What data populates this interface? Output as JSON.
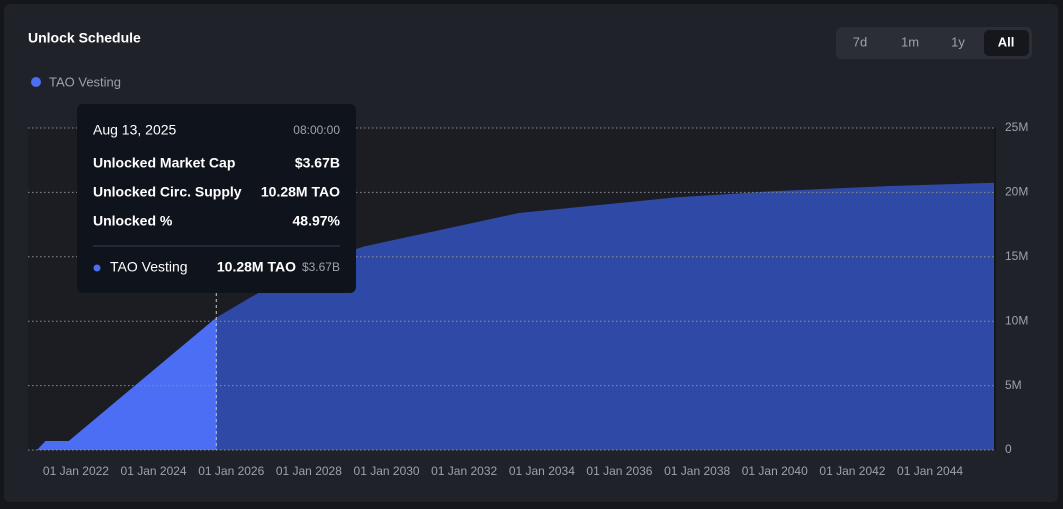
{
  "chart_data": {
    "type": "area",
    "title": "Unlock Schedule",
    "x": [
      "2020-12-31",
      "2021-03-20",
      "2021-10-25",
      "2025-08-13",
      "2026-06-01",
      "2027-06-01",
      "2028-06-01",
      "2029-06-01",
      "2031-06-01",
      "2033-06-01",
      "2035-06-01",
      "2037-06-01",
      "2040-01-01",
      "2043-01-01",
      "2045-09-03"
    ],
    "series": [
      {
        "name": "TAO Vesting",
        "color": "#2f4aa6",
        "highlight_color": "#4b6ef5",
        "values": [
          0,
          700000,
          700000,
          10280000,
          11700000,
          13400000,
          14800000,
          15800000,
          17100000,
          18400000,
          19000000,
          19600000,
          20100000,
          20500000,
          20750000
        ]
      }
    ],
    "xlim": [
      "2020-12-21",
      "2045-09-03"
    ],
    "xticks": [
      {
        "value": "2022-01-01",
        "label": "01 Jan 2022"
      },
      {
        "value": "2024-01-01",
        "label": "01 Jan 2024"
      },
      {
        "value": "2026-01-01",
        "label": "01 Jan 2026"
      },
      {
        "value": "2028-01-01",
        "label": "01 Jan 2028"
      },
      {
        "value": "2030-01-01",
        "label": "01 Jan 2030"
      },
      {
        "value": "2032-01-01",
        "label": "01 Jan 2032"
      },
      {
        "value": "2034-01-01",
        "label": "01 Jan 2034"
      },
      {
        "value": "2036-01-01",
        "label": "01 Jan 2036"
      },
      {
        "value": "2038-01-01",
        "label": "01 Jan 2038"
      },
      {
        "value": "2040-01-01",
        "label": "01 Jan 2040"
      },
      {
        "value": "2042-01-01",
        "label": "01 Jan 2042"
      },
      {
        "value": "2044-01-01",
        "label": "01 Jan 2044"
      }
    ],
    "ylim": [
      0,
      25000000
    ],
    "yticks": [
      0,
      {
        "value": 5000000,
        "label": "5M"
      },
      {
        "value": 10000000,
        "label": "10M"
      },
      {
        "value": 15000000,
        "label": "15M"
      },
      {
        "value": 20000000,
        "label": "20M"
      },
      {
        "value": 25000000,
        "label": "25M"
      }
    ],
    "grid": true
  },
  "controls": [
    "7d",
    "1m",
    "1y",
    "All"
  ],
  "active_control": 3,
  "tooltip": {
    "date": {
      "value": "2025-08-13",
      "label": "Aug 13, 2025"
    },
    "time": "08:00:00",
    "rows": [
      [
        "Unlocked Market Cap",
        "$3.67B"
      ],
      [
        "Unlocked Circ. Supply",
        "10.28M TAO"
      ],
      [
        "Unlocked %",
        "48.97%"
      ]
    ],
    "series_row": {
      "name": "TAO Vesting",
      "amount": "10.28M TAO",
      "value": "$3.67B"
    }
  }
}
